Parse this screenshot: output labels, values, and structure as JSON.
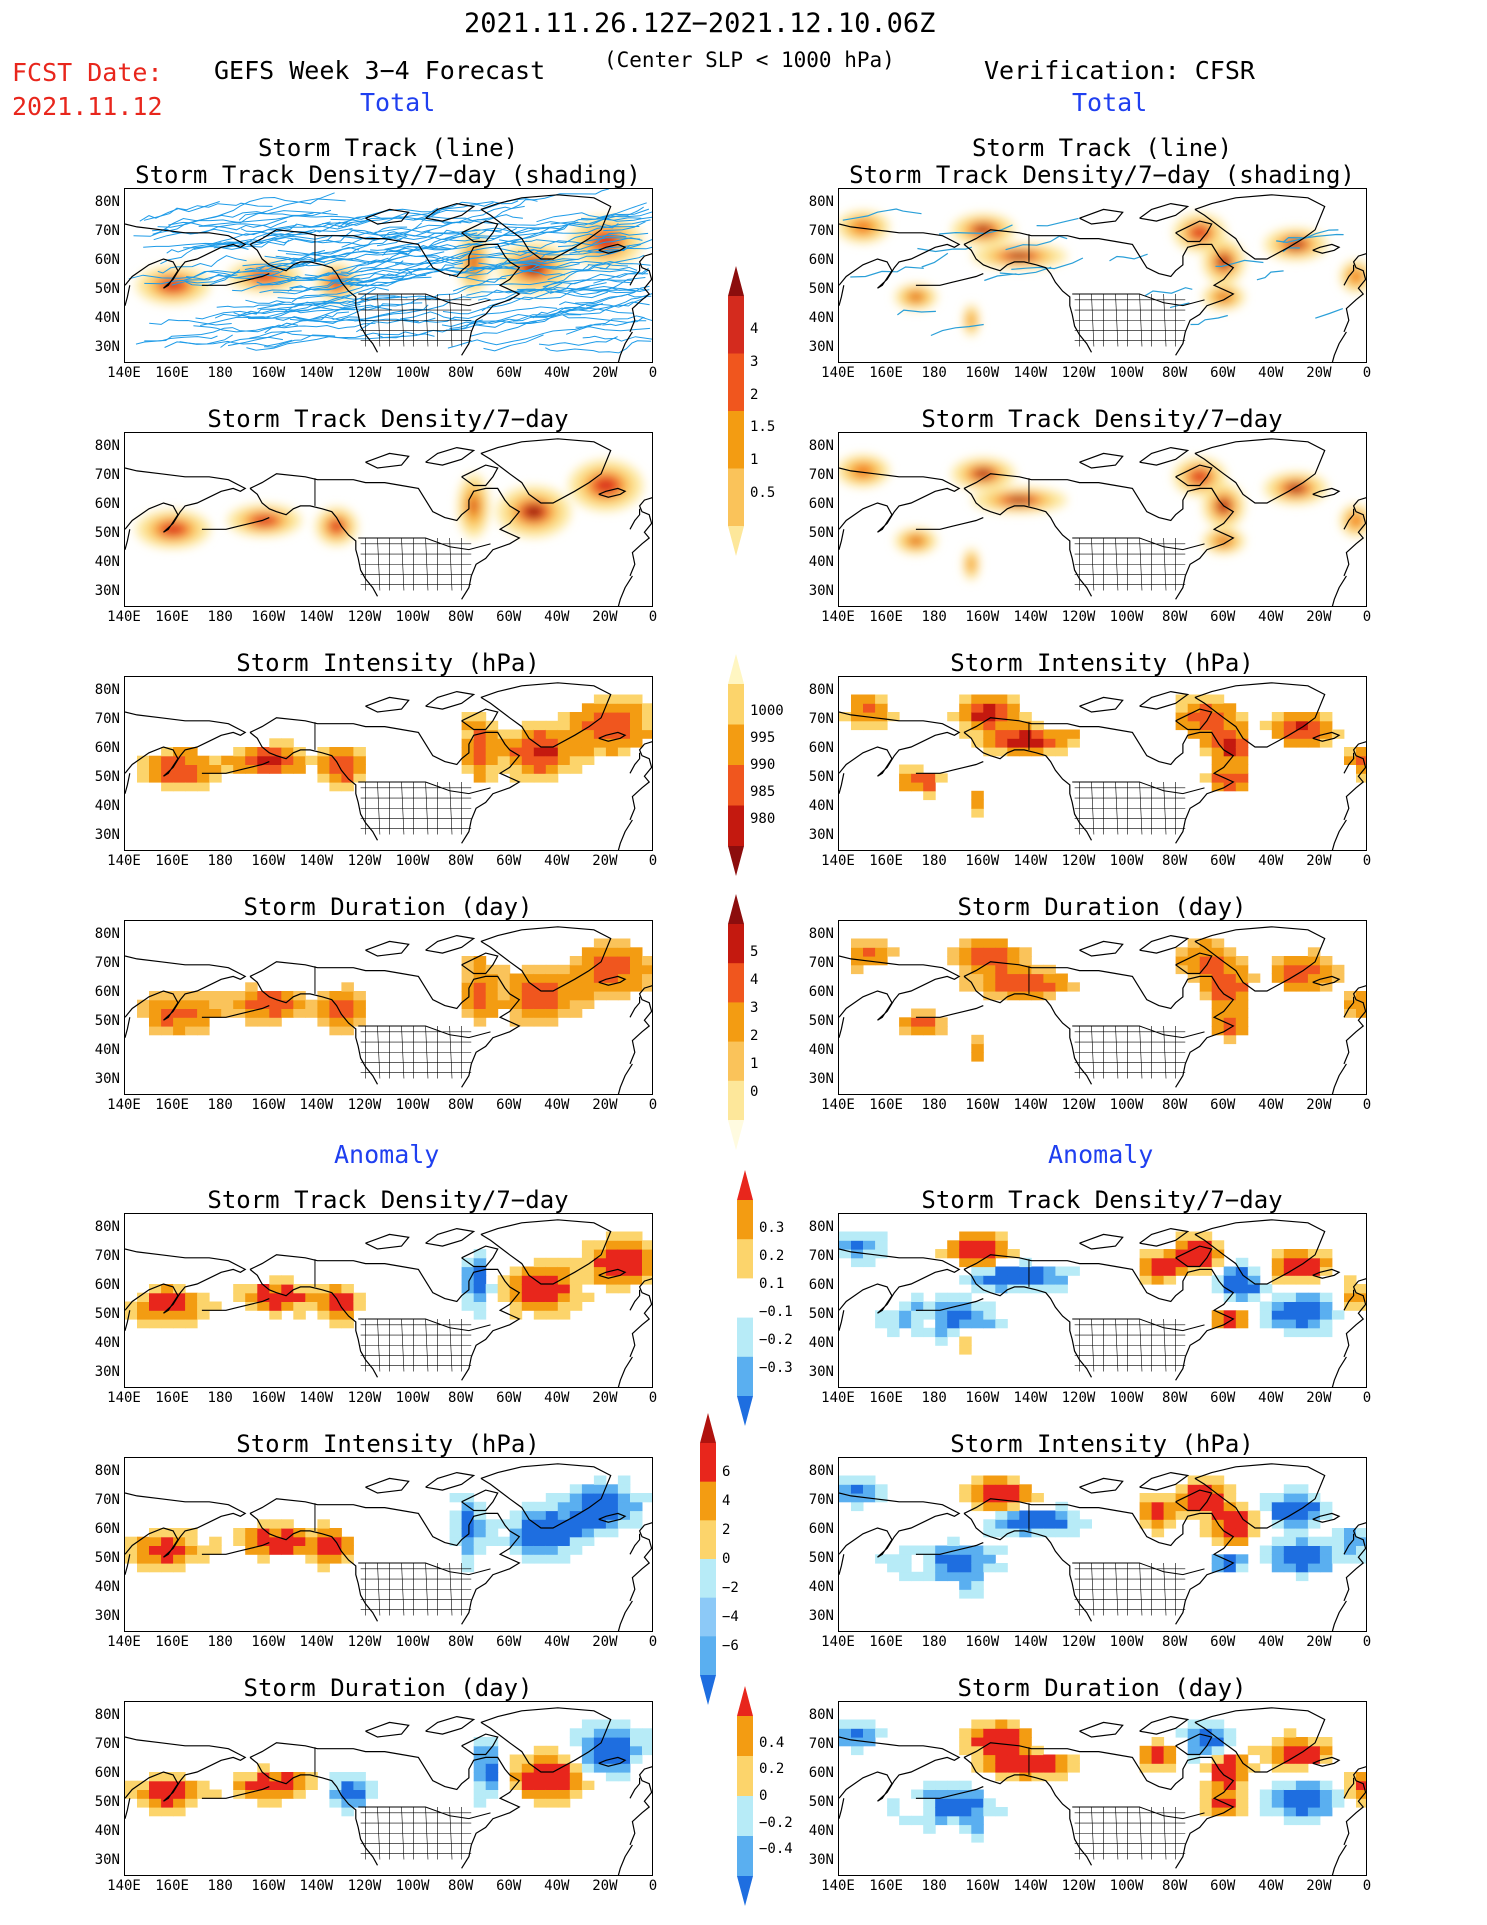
{
  "header": {
    "date_range": "2021.11.26.12Z−2021.12.10.06Z",
    "criteria": "(Center SLP < 1000 hPa)",
    "fcst_label": "FCST Date:",
    "fcst_date": "2021.11.12",
    "left_title": "GEFS Week 3−4 Forecast",
    "right_title": "Verification: CFSR",
    "total_left": "Total",
    "total_right": "Total",
    "anomaly_left": "Anomaly",
    "anomaly_right": "Anomaly"
  },
  "panel_titles": {
    "track": [
      "Storm Track (line)",
      "Storm Track Density/7−day (shading)"
    ],
    "density": "Storm Track Density/7−day",
    "intensity": "Storm Intensity (hPa)",
    "duration": "Storm Duration (day)"
  },
  "axes": {
    "lat_labels": [
      "80N",
      "70N",
      "60N",
      "50N",
      "40N",
      "30N"
    ],
    "lon_labels": [
      "140E",
      "160E",
      "180",
      "160W",
      "140W",
      "120W",
      "100W",
      "80W",
      "60W",
      "40W",
      "20W",
      "0"
    ]
  },
  "colorbars": {
    "density": {
      "labels": [
        "4",
        "3",
        "2",
        "1.5",
        "1",
        "0.5"
      ],
      "colors": [
        "#8c0d0d",
        "#d42b1e",
        "#f0561e",
        "#f39c12",
        "#fac35a",
        "#fde79a"
      ]
    },
    "intensity": {
      "labels": [
        "1000",
        "995",
        "990",
        "985",
        "980"
      ],
      "colors": [
        "#fff6c2",
        "#fcd46b",
        "#f39c12",
        "#f0561e",
        "#c4190f",
        "#8c0d0d"
      ]
    },
    "duration": {
      "labels": [
        "5",
        "4",
        "3",
        "2",
        "1",
        "0"
      ],
      "colors": [
        "#8c0d0d",
        "#c4190f",
        "#f0561e",
        "#f39c12",
        "#fac35a",
        "#fde79a",
        "#fffbe0"
      ]
    },
    "anom_density": {
      "labels": [
        "0.3",
        "0.2",
        "0.1",
        "−0.1",
        "−0.2",
        "−0.3"
      ],
      "colors": [
        "#e8261c",
        "#f39c12",
        "#fcd46b",
        "#ffffff",
        "#b7ebf7",
        "#5aaff0",
        "#1e6ee0"
      ]
    },
    "anom_intensity": {
      "labels": [
        "6",
        "4",
        "2",
        "0",
        "−2",
        "−4",
        "−6"
      ],
      "colors": [
        "#b0120e",
        "#e8261c",
        "#f39c12",
        "#fcd46b",
        "#b7ebf7",
        "#8cc9f7",
        "#5aaff0",
        "#1e6ee0"
      ]
    },
    "anom_duration": {
      "labels": [
        "0.4",
        "0.2",
        "0",
        "−0.2",
        "−0.4"
      ],
      "colors": [
        "#e8261c",
        "#f39c12",
        "#fcd46b",
        "#b7ebf7",
        "#5aaff0",
        "#1e6ee0"
      ]
    }
  },
  "chart_data": [
    {
      "type": "heatmap",
      "title": "Storm Track (line) / Storm Track Density/7-day (shading)",
      "source": "GEFS Week 3-4 Forecast",
      "region": "North Pacific / North America / North Atlantic",
      "lat_range": [
        25,
        85
      ],
      "lon_range": [
        140,
        360
      ]
    },
    {
      "type": "heatmap",
      "title": "Storm Track (line) / Storm Track Density/7-day (shading)",
      "source": "Verification: CFSR"
    },
    {
      "type": "heatmap",
      "title": "Storm Track Density/7-day",
      "source": "GEFS"
    },
    {
      "type": "heatmap",
      "title": "Storm Track Density/7-day",
      "source": "CFSR"
    },
    {
      "type": "heatmap",
      "title": "Storm Intensity (hPa)",
      "source": "GEFS"
    },
    {
      "type": "heatmap",
      "title": "Storm Intensity (hPa)",
      "source": "CFSR"
    },
    {
      "type": "heatmap",
      "title": "Storm Duration (day)",
      "source": "GEFS"
    },
    {
      "type": "heatmap",
      "title": "Storm Duration (day)",
      "source": "CFSR"
    },
    {
      "type": "heatmap",
      "title": "Anomaly Storm Track Density/7-day",
      "source": "GEFS"
    },
    {
      "type": "heatmap",
      "title": "Anomaly Storm Track Density/7-day",
      "source": "CFSR"
    },
    {
      "type": "heatmap",
      "title": "Anomaly Storm Intensity (hPa)",
      "source": "GEFS"
    },
    {
      "type": "heatmap",
      "title": "Anomaly Storm Intensity (hPa)",
      "source": "CFSR"
    },
    {
      "type": "heatmap",
      "title": "Anomaly Storm Duration (day)",
      "source": "GEFS"
    },
    {
      "type": "heatmap",
      "title": "Anomaly Storm Duration (day)",
      "source": "CFSR"
    }
  ]
}
